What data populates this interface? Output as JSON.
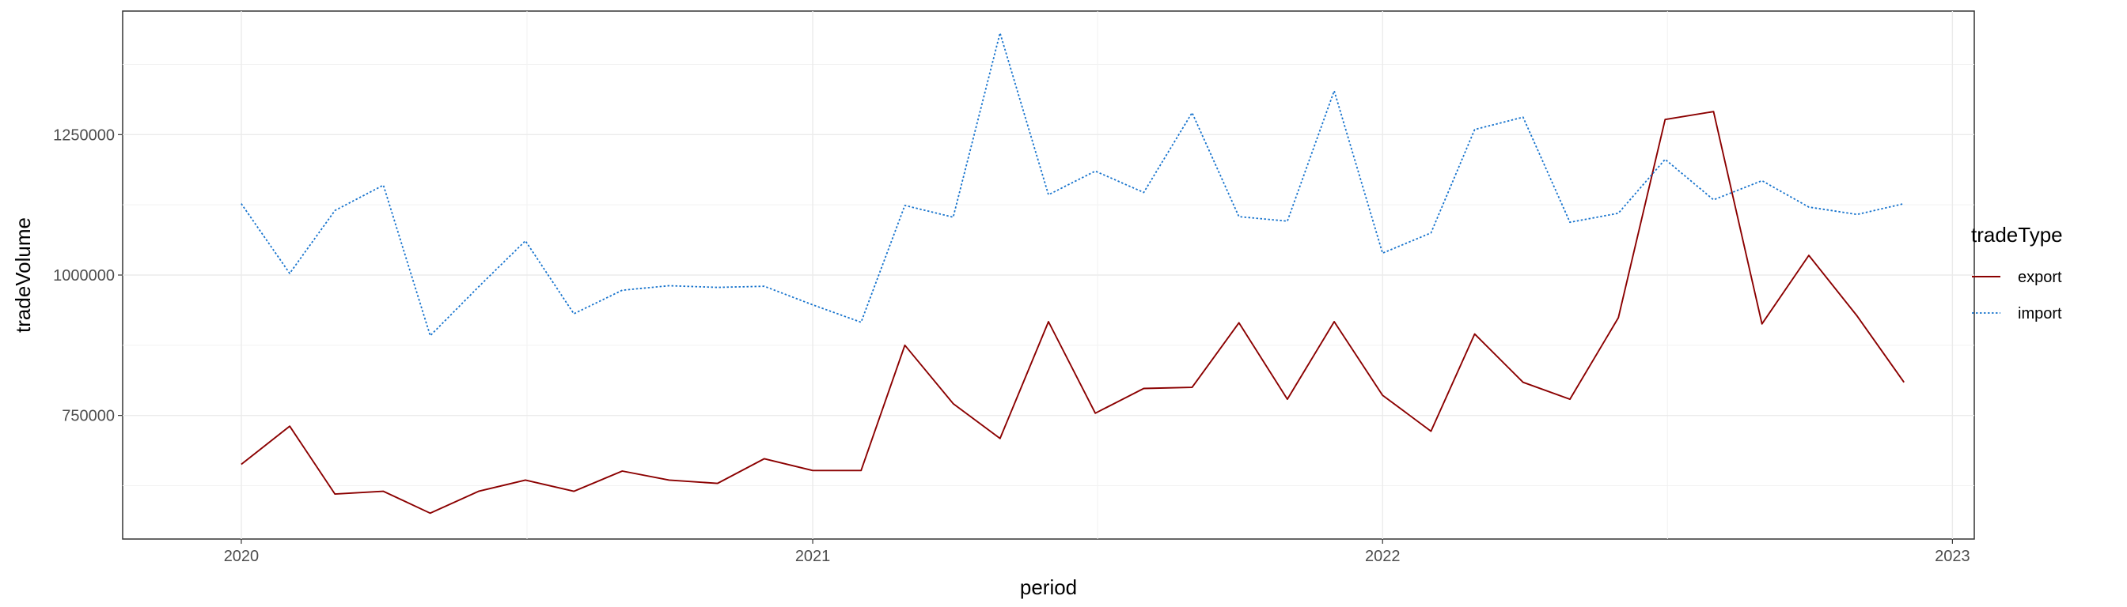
{
  "chart_data": {
    "type": "line",
    "xlabel": "period",
    "ylabel": "tradeVolume",
    "x_ticks": [
      "2020",
      "2021",
      "2022",
      "2023"
    ],
    "y_ticks": [
      750000,
      1000000,
      1250000
    ],
    "y_tick_labels": [
      "750000",
      "1000000",
      "1250000"
    ],
    "xlim": [
      "2019-10-17",
      "2023-01-15"
    ],
    "ylim": [
      530000,
      1470000
    ],
    "grid": true,
    "legend": {
      "title": "tradeType",
      "position": "right"
    },
    "x": [
      "2020-01",
      "2020-02",
      "2020-03",
      "2020-04",
      "2020-05",
      "2020-06",
      "2020-07",
      "2020-08",
      "2020-09",
      "2020-10",
      "2020-11",
      "2020-12",
      "2021-01",
      "2021-02",
      "2021-03",
      "2021-04",
      "2021-05",
      "2021-06",
      "2021-07",
      "2021-08",
      "2021-09",
      "2021-10",
      "2021-11",
      "2021-12",
      "2022-01",
      "2022-02",
      "2022-03",
      "2022-04",
      "2022-05",
      "2022-06",
      "2022-07",
      "2022-08",
      "2022-09",
      "2022-10",
      "2022-11",
      "2022-12"
    ],
    "series": [
      {
        "name": "export",
        "color": "#8B0000",
        "style": "solid",
        "values": [
          663000,
          731000,
          610000,
          615000,
          576000,
          615000,
          635000,
          615000,
          651000,
          635000,
          629000,
          673000,
          652000,
          652000,
          875000,
          771000,
          709000,
          917000,
          754000,
          798000,
          800000,
          915000,
          779000,
          917000,
          786000,
          722000,
          895000,
          809000,
          779000,
          924000,
          1277000,
          1291000,
          913000,
          1035000,
          927000,
          809000
        ]
      },
      {
        "name": "import",
        "color": "#1874CD",
        "style": "dotted",
        "values": [
          1127000,
          1003000,
          1115000,
          1160000,
          892000,
          979000,
          1061000,
          931000,
          973000,
          981000,
          978000,
          980000,
          947000,
          916000,
          1124000,
          1103000,
          1431000,
          1143000,
          1185000,
          1147000,
          1289000,
          1104000,
          1096000,
          1328000,
          1039000,
          1075000,
          1259000,
          1281000,
          1094000,
          1110000,
          1206000,
          1134000,
          1168000,
          1121000,
          1108000,
          1127000
        ]
      }
    ]
  }
}
